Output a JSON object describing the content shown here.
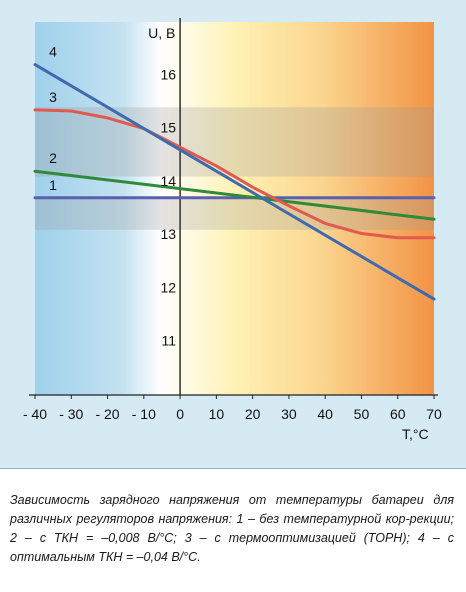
{
  "chart_data": {
    "type": "line",
    "ylabel": "U, В",
    "xlabel": "Т,°С",
    "xlim": [
      -40,
      70
    ],
    "ylim": [
      10,
      17
    ],
    "x_ticks": [
      -40,
      -30,
      -20,
      -10,
      0,
      10,
      20,
      30,
      40,
      50,
      60,
      70
    ],
    "x_tick_labels": [
      "- 40",
      "- 30",
      "- 20",
      "- 10",
      "0",
      "10",
      "20",
      "30",
      "40",
      "50",
      "60",
      "70"
    ],
    "y_ticks": [
      11,
      12,
      13,
      14,
      15,
      16
    ],
    "y_tick_labels": [
      "11",
      "12",
      "13",
      "14",
      "15",
      "16"
    ],
    "shaded_bands": [
      [
        13.1,
        13.7
      ],
      [
        14.1,
        15.4
      ]
    ],
    "series": [
      {
        "name": "1",
        "color": "#5b5fb0",
        "x": [
          -40,
          70
        ],
        "y": [
          13.7,
          13.7
        ]
      },
      {
        "name": "2",
        "color": "#2f8a3a",
        "x": [
          -40,
          70
        ],
        "y": [
          14.2,
          13.3
        ]
      },
      {
        "name": "3",
        "color": "#e05a4f",
        "x": [
          -40,
          -30,
          -20,
          -10,
          0,
          10,
          20,
          30,
          40,
          50,
          60,
          70
        ],
        "y": [
          15.35,
          15.33,
          15.2,
          15.0,
          14.65,
          14.3,
          13.9,
          13.55,
          13.22,
          13.03,
          12.95,
          12.95
        ]
      },
      {
        "name": "4",
        "color": "#3f6ab0",
        "x": [
          -40,
          70
        ],
        "y": [
          16.2,
          11.8
        ]
      }
    ]
  },
  "caption": "Зависимость зарядного напряжения от температуры батареи для различных регуляторов напряжения: 1 – без температурной кор-рекции; 2 – с ТКН = –0,008 В/°С; 3 – с термооптимизацией (ТОРН); 4 – с оптимальным ТКН = –0,04 В/°С."
}
